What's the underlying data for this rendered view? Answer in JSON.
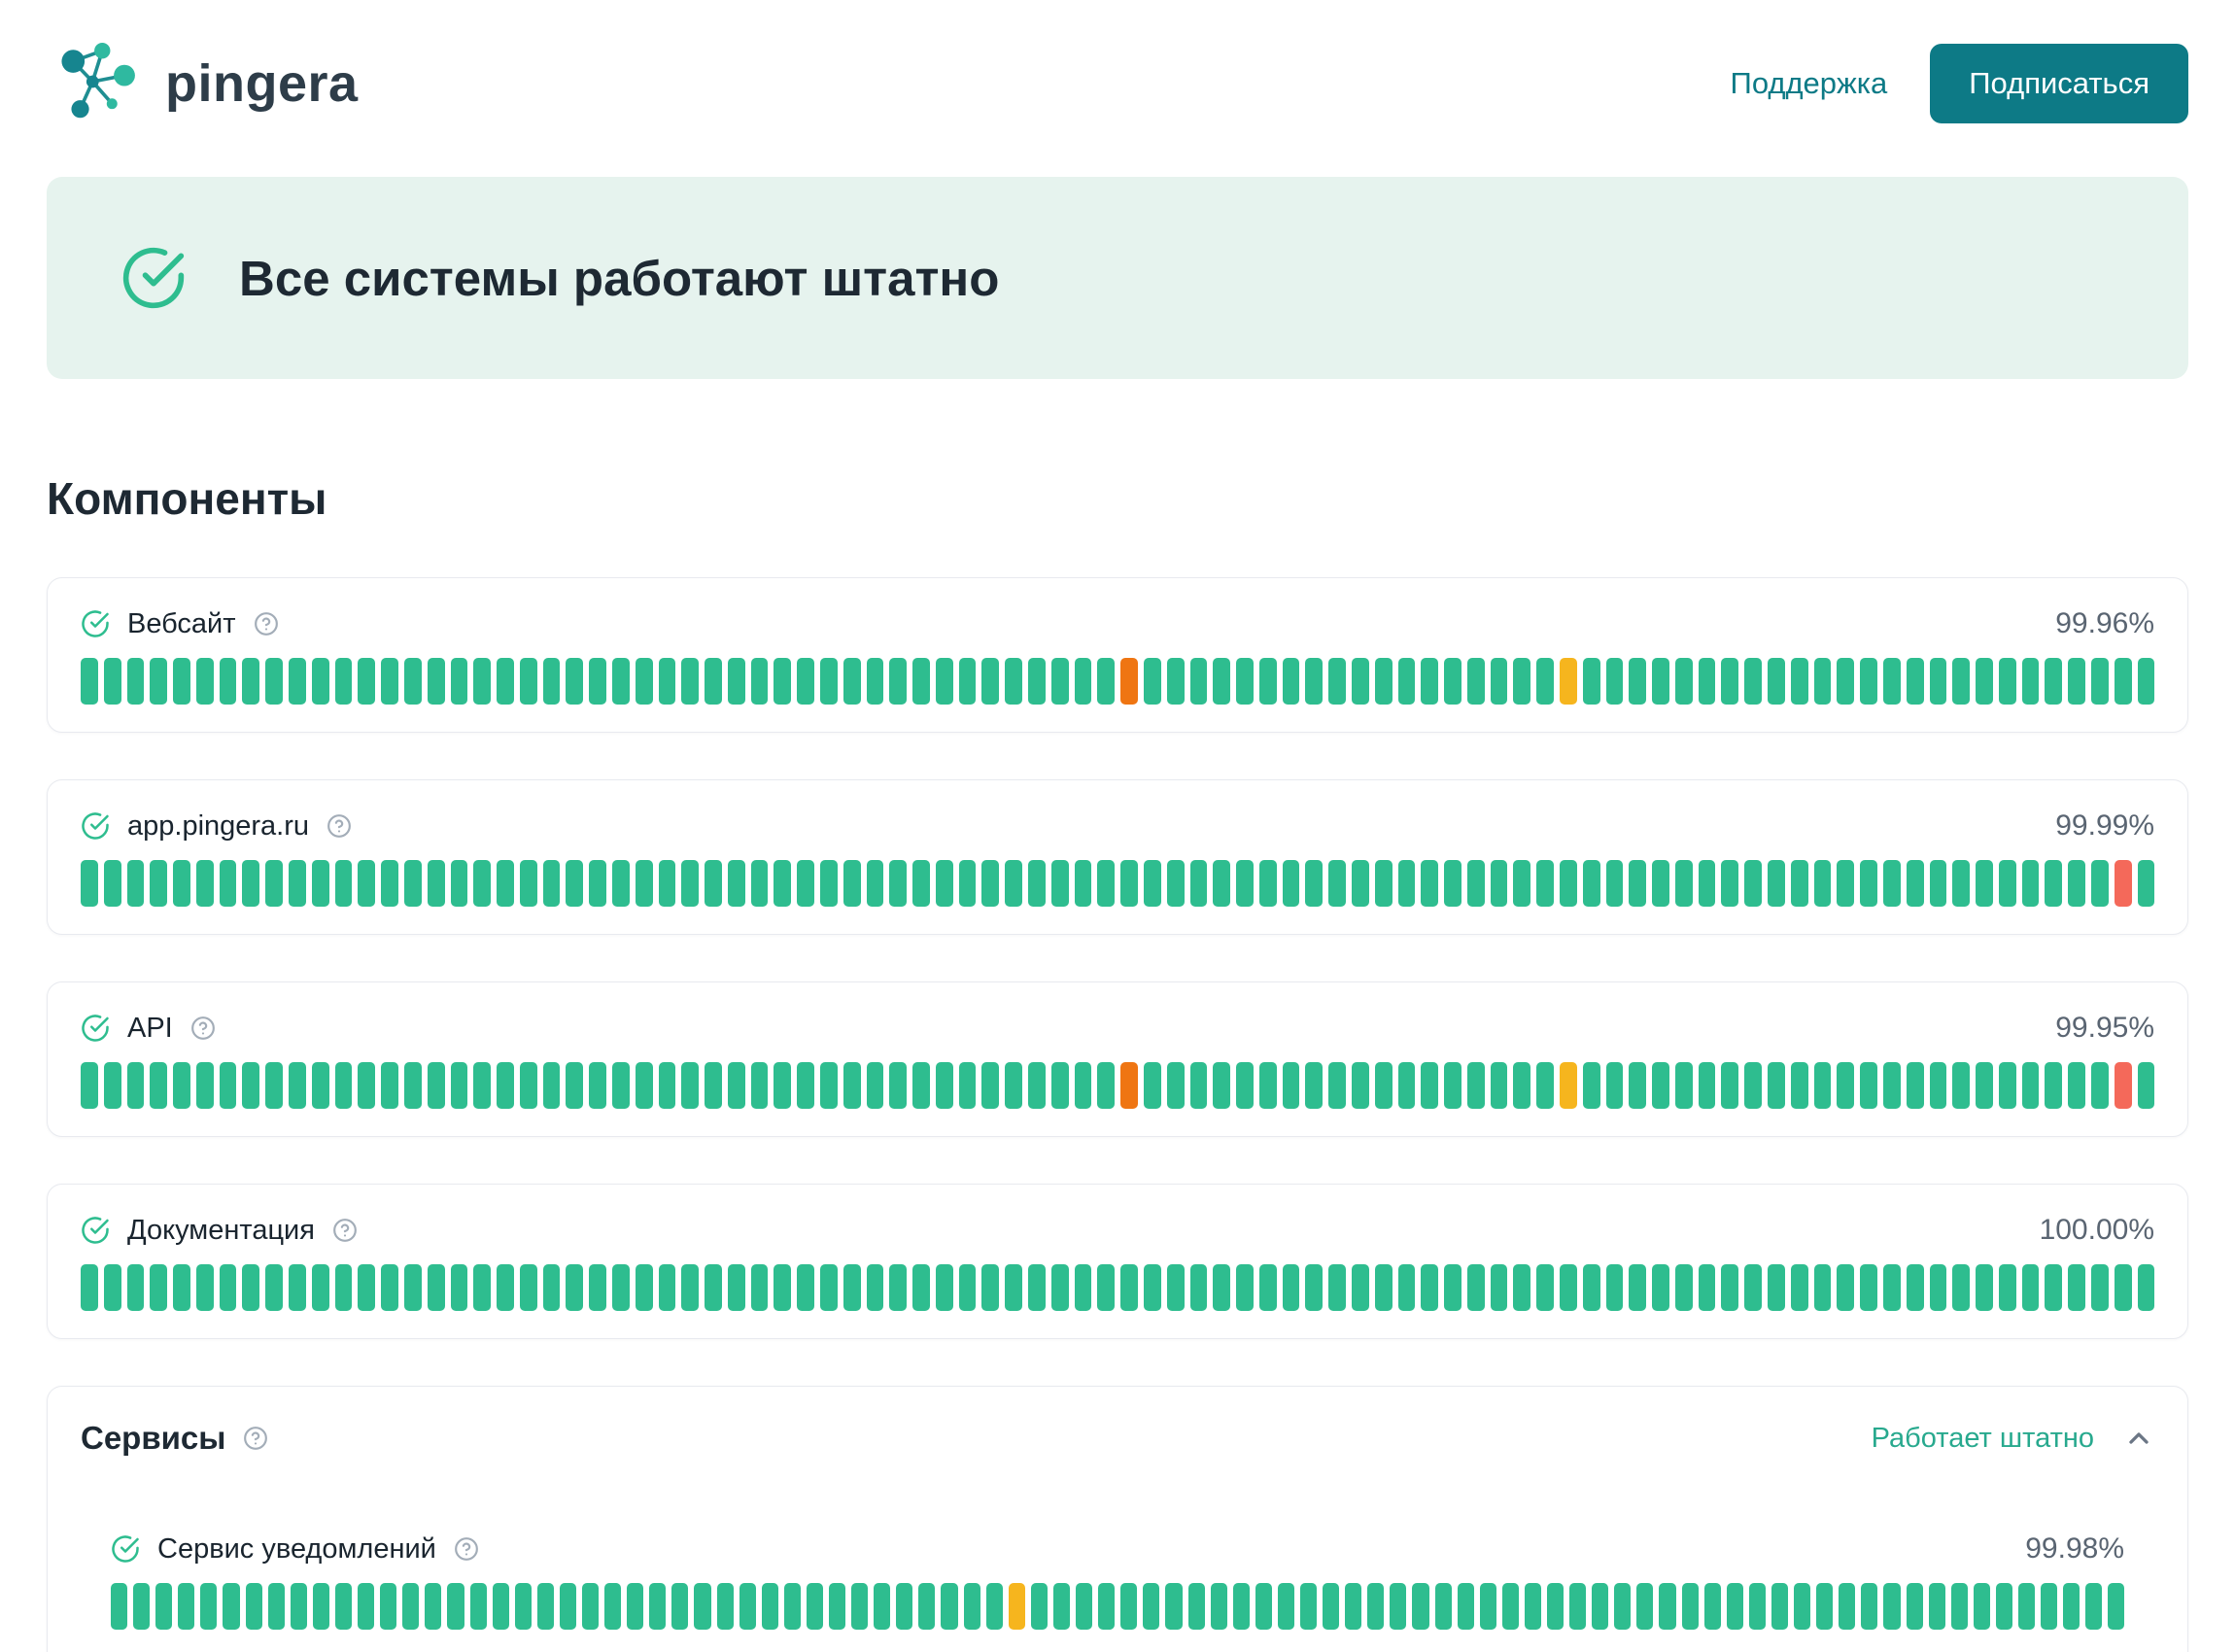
{
  "header": {
    "brand": "pingera",
    "support_label": "Поддержка",
    "subscribe_label": "Подписаться"
  },
  "status_banner": {
    "message": "Все системы работают штатно"
  },
  "components_section": {
    "title": "Компоненты",
    "components": [
      {
        "name": "Вебсайт",
        "uptime": "99.96%",
        "bar": {
          "total": 90,
          "overrides": [
            {
              "index": 45,
              "color": "orange"
            },
            {
              "index": 64,
              "color": "yellow"
            }
          ]
        }
      },
      {
        "name": "app.pingera.ru",
        "uptime": "99.99%",
        "bar": {
          "total": 90,
          "overrides": [
            {
              "index": 88,
              "color": "red"
            }
          ]
        }
      },
      {
        "name": "API",
        "uptime": "99.95%",
        "bar": {
          "total": 90,
          "overrides": [
            {
              "index": 45,
              "color": "orange"
            },
            {
              "index": 64,
              "color": "yellow"
            },
            {
              "index": 88,
              "color": "red"
            }
          ]
        }
      },
      {
        "name": "Документация",
        "uptime": "100.00%",
        "bar": {
          "total": 90,
          "overrides": []
        }
      }
    ]
  },
  "services_group": {
    "title": "Сервисы",
    "status_label": "Работает штатно",
    "components": [
      {
        "name": "Сервис уведомлений",
        "uptime": "99.98%",
        "bar": {
          "total": 90,
          "overrides": [
            {
              "index": 40,
              "color": "yellow"
            }
          ]
        }
      }
    ]
  },
  "icons": {
    "status_ok": "check-circle",
    "help": "help-circle",
    "collapse": "chevron-up",
    "brand": "molecule-network"
  },
  "colors": {
    "green": "#2ebd8f",
    "orange": "#ef7512",
    "yellow": "#f6b51e",
    "red": "#f4695a",
    "teal": "#0d7a86",
    "banner_bg": "#e6f3ee",
    "status_text": "#28a98e"
  }
}
